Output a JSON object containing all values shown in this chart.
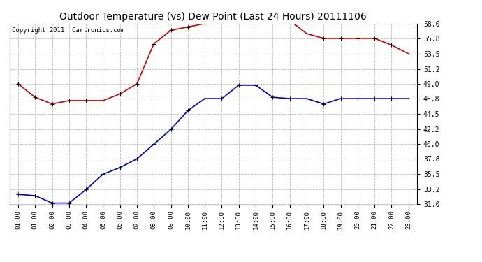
{
  "title": "Outdoor Temperature (vs) Dew Point (Last 24 Hours) 20111106",
  "copyright": "Copyright 2011  Cartronics.com",
  "x_labels": [
    "01:00",
    "01:00",
    "02:00",
    "03:00",
    "04:00",
    "05:00",
    "06:00",
    "07:00",
    "08:00",
    "09:00",
    "10:00",
    "11:00",
    "12:00",
    "13:00",
    "14:00",
    "15:00",
    "16:00",
    "17:00",
    "18:00",
    "19:00",
    "20:00",
    "21:00",
    "22:00",
    "23:00"
  ],
  "temp_red": [
    49.0,
    47.0,
    46.0,
    46.5,
    46.5,
    46.5,
    47.5,
    49.0,
    55.0,
    57.0,
    57.5,
    58.0,
    58.5,
    58.5,
    58.5,
    58.5,
    58.5,
    56.5,
    55.8,
    55.8,
    55.8,
    55.8,
    54.8,
    53.5
  ],
  "dew_blue": [
    32.5,
    32.3,
    31.2,
    31.2,
    33.2,
    35.5,
    36.5,
    37.8,
    40.0,
    42.2,
    45.0,
    46.8,
    46.8,
    48.8,
    48.8,
    47.0,
    46.8,
    46.8,
    46.0,
    46.8,
    46.8,
    46.8,
    46.8,
    46.8
  ],
  "ylim": [
    31.0,
    58.0
  ],
  "yticks": [
    31.0,
    33.2,
    35.5,
    37.8,
    40.0,
    42.2,
    44.5,
    46.8,
    49.0,
    51.2,
    53.5,
    55.8,
    58.0
  ],
  "bg_color": "#ffffff",
  "grid_color": "#bbbbbb",
  "red_color": "#cc0000",
  "blue_color": "#0000cc",
  "title_fontsize": 10,
  "copyright_fontsize": 6.5
}
